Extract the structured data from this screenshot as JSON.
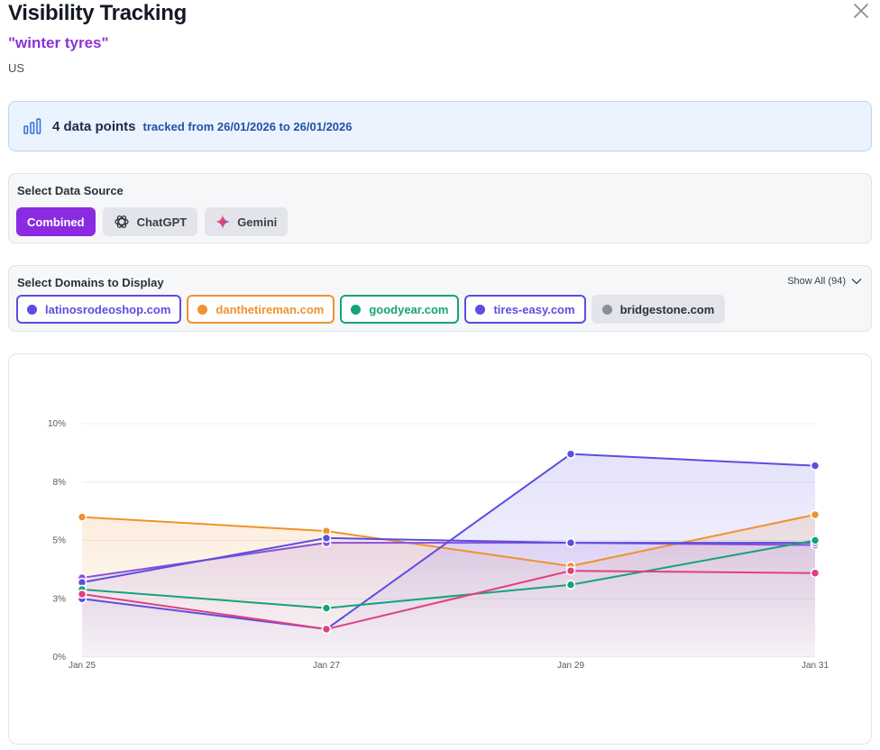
{
  "header": {
    "title": "Visibility Tracking",
    "keyword": "\"winter tyres\"",
    "region": "US"
  },
  "info": {
    "count": "4 data points",
    "range": "tracked from 26/01/2026 to 26/01/2026"
  },
  "data_source": {
    "label": "Select Data Source",
    "options": [
      {
        "label": "Combined",
        "active": true,
        "icon": "combined"
      },
      {
        "label": "ChatGPT",
        "active": false,
        "icon": "chatgpt-icon"
      },
      {
        "label": "Gemini",
        "active": false,
        "icon": "gemini-icon"
      }
    ]
  },
  "domains": {
    "label": "Select Domains to Display",
    "show_all": "Show All (94)",
    "chips": [
      {
        "label": "latinosrodeoshop.com",
        "color": "#5b4ee0",
        "selected": true
      },
      {
        "label": "danthetireman.com",
        "color": "#f0922e",
        "selected": true
      },
      {
        "label": "goodyear.com",
        "color": "#14a37a",
        "selected": true
      },
      {
        "label": "tires-easy.com",
        "color": "#5b4ee0",
        "selected": true
      },
      {
        "label": "bridgestone.com",
        "color": "#8a8e99",
        "selected": false
      }
    ]
  },
  "chart_data": {
    "type": "line",
    "x": [
      "Jan 25",
      "Jan 27",
      "Jan 29",
      "Jan 31"
    ],
    "y_ticks": [
      "0%",
      "3%",
      "5%",
      "8%",
      "10%"
    ],
    "ylim": [
      0,
      10
    ],
    "grid": true,
    "series": [
      {
        "color": "#f0922e",
        "values": [
          6.0,
          5.4,
          3.9,
          6.1
        ],
        "fill": true
      },
      {
        "color": "#8a4fd8",
        "values": [
          3.4,
          4.9,
          4.9,
          4.8
        ],
        "fill": true
      },
      {
        "color": "#5b4ee0",
        "values": [
          2.5,
          1.2,
          8.7,
          8.2
        ],
        "fill": true
      },
      {
        "color": "#5b4ee0",
        "values": [
          3.2,
          5.1,
          4.9,
          4.9
        ],
        "fill": false
      },
      {
        "color": "#14a37a",
        "values": [
          2.9,
          2.1,
          3.1,
          5.0
        ],
        "fill": false
      },
      {
        "color": "#e0407f",
        "values": [
          2.7,
          1.2,
          3.7,
          3.6
        ],
        "fill": false
      }
    ]
  }
}
